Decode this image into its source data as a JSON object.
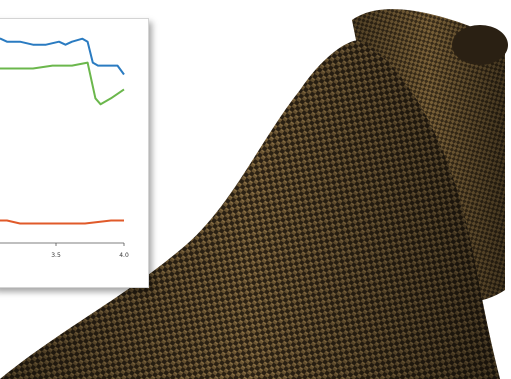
{
  "chart_data": {
    "type": "line",
    "title": "",
    "xlabel": "",
    "ylabel": "",
    "xlim": [
      2.7,
      4.0
    ],
    "ylim": [
      0,
      1
    ],
    "grid": false,
    "legend": "none",
    "tick_labels": {
      "x": [
        "3.5",
        "4.0"
      ]
    },
    "series": [
      {
        "color": "#2a7bc1",
        "x": [
          2.7,
          2.95,
          3.05,
          3.1,
          3.2,
          3.3,
          3.4,
          3.5,
          3.55,
          3.6,
          3.68,
          3.72,
          3.76,
          3.8,
          3.85,
          3.95,
          4.0
        ],
        "y": [
          0.88,
          0.88,
          0.87,
          0.86,
          0.86,
          0.85,
          0.85,
          0.86,
          0.85,
          0.86,
          0.87,
          0.86,
          0.79,
          0.78,
          0.78,
          0.78,
          0.75
        ]
      },
      {
        "color": "#6bb74c",
        "x": [
          2.7,
          2.9,
          3.0,
          3.1,
          3.2,
          3.3,
          3.45,
          3.6,
          3.72,
          3.78,
          3.82,
          3.9,
          4.0
        ],
        "y": [
          0.76,
          0.77,
          0.77,
          0.77,
          0.77,
          0.77,
          0.78,
          0.78,
          0.79,
          0.67,
          0.65,
          0.67,
          0.7
        ]
      },
      {
        "color": "#e05a2a",
        "x": [
          2.7,
          2.95,
          3.05,
          3.1,
          3.2,
          3.3,
          3.5,
          3.7,
          3.9,
          4.0
        ],
        "y": [
          0.26,
          0.26,
          0.26,
          0.26,
          0.25,
          0.25,
          0.25,
          0.25,
          0.26,
          0.26
        ]
      }
    ]
  },
  "image": {
    "subject": "woven-carbon-fiber-sleeve",
    "colors": {
      "weave_dark": "#2b2114",
      "weave_mid": "#5a4628",
      "weave_light": "#8a7043"
    }
  }
}
